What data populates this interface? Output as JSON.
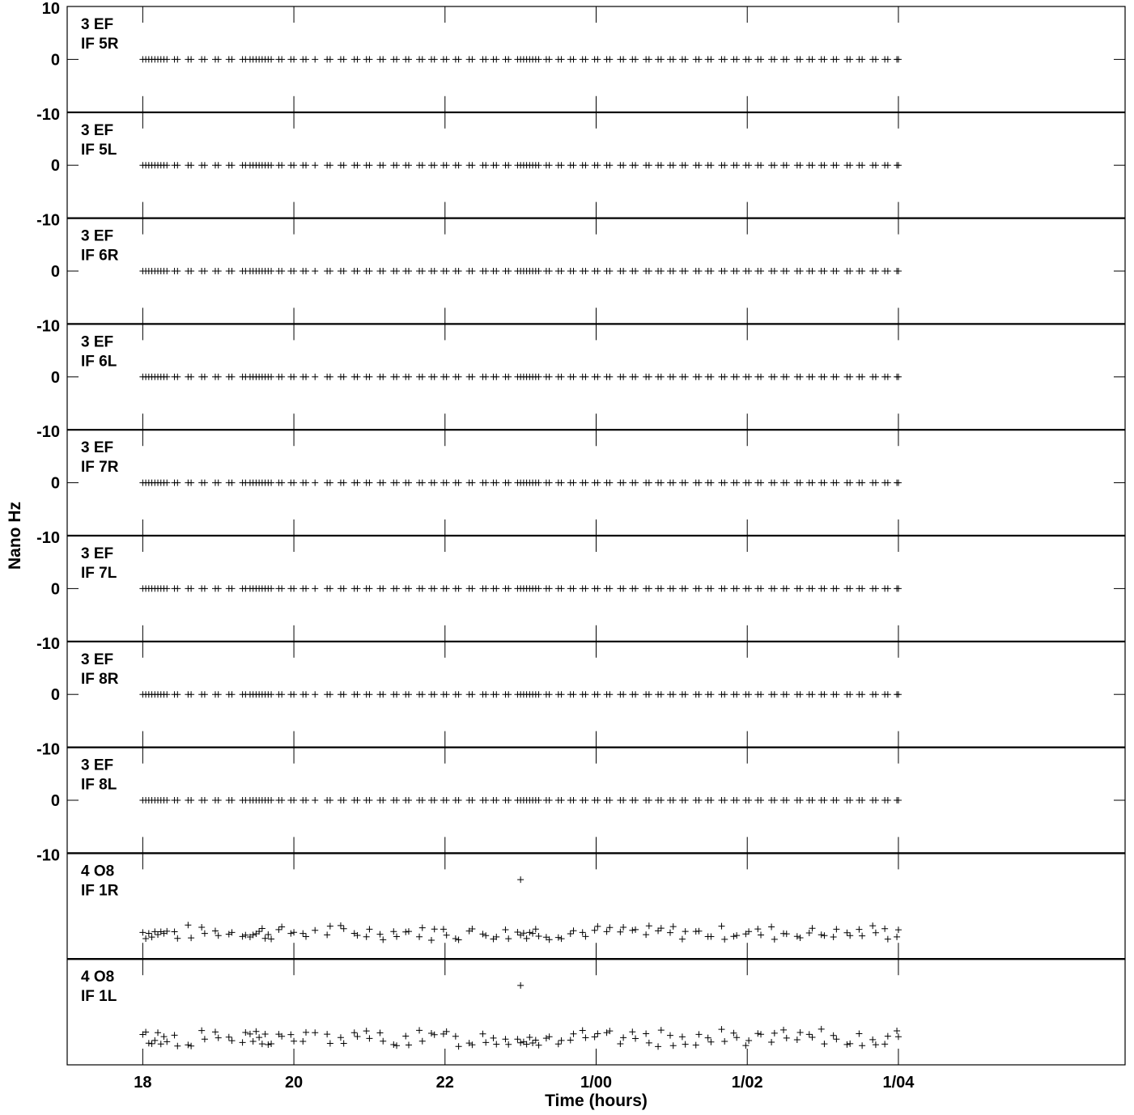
{
  "chart_data": {
    "type": "scatter",
    "xlabel": "Time (hours)",
    "ylabel": "Nano Hz",
    "x_tick_labels": [
      "18",
      "20",
      "22",
      "1/00",
      "1/02",
      "1/04"
    ],
    "x_tick_hours": [
      18,
      20,
      22,
      24,
      26,
      28
    ],
    "x_range_hours": [
      17,
      31
    ],
    "minor_tick_hours": [
      18,
      20,
      22,
      24,
      26,
      28
    ],
    "panels": [
      {
        "label_line1": "3 EF",
        "label_line2": "IF 5R",
        "y_tick_labels": [
          "10",
          "0",
          "-10"
        ],
        "ylim": [
          -10,
          10
        ],
        "level": 0
      },
      {
        "label_line1": "3 EF",
        "label_line2": "IF 5L",
        "y_tick_labels": [
          "0",
          "-10"
        ],
        "ylim": [
          -10,
          10
        ],
        "level": 0
      },
      {
        "label_line1": "3 EF",
        "label_line2": "IF 6R",
        "y_tick_labels": [
          "0",
          "-10"
        ],
        "ylim": [
          -10,
          10
        ],
        "level": 0
      },
      {
        "label_line1": "3 EF",
        "label_line2": "IF 6L",
        "y_tick_labels": [
          "0",
          "-10"
        ],
        "ylim": [
          -10,
          10
        ],
        "level": 0
      },
      {
        "label_line1": "3 EF",
        "label_line2": "IF 7R",
        "y_tick_labels": [
          "0",
          "-10"
        ],
        "ylim": [
          -10,
          10
        ],
        "level": 0
      },
      {
        "label_line1": "3 EF",
        "label_line2": "IF 7L",
        "y_tick_labels": [
          "0",
          "-10"
        ],
        "ylim": [
          -10,
          10
        ],
        "level": 0
      },
      {
        "label_line1": "3 EF",
        "label_line2": "IF 8R",
        "y_tick_labels": [
          "0",
          "-10"
        ],
        "ylim": [
          -10,
          10
        ],
        "level": 0
      },
      {
        "label_line1": "3 EF",
        "label_line2": "IF 8L",
        "y_tick_labels": [
          "0",
          "-10"
        ],
        "ylim": [
          -10,
          10
        ],
        "level": 0
      },
      {
        "label_line1": "4 O8",
        "label_line2": "IF 1R",
        "y_tick_labels": [],
        "ylim": [
          -10,
          10
        ],
        "level": -5,
        "scatter_amp": 1.3,
        "outlier": {
          "x": 23.0,
          "y": 5
        },
        "seed": 7
      },
      {
        "label_line1": "4 O8",
        "label_line2": "IF 1L",
        "y_tick_labels": [],
        "ylim": [
          -10,
          10
        ],
        "level": -5,
        "scatter_amp": 1.5,
        "outlier": {
          "x": 23.0,
          "y": 5
        },
        "seed": 13
      }
    ],
    "sample_times_hours": [
      18.0,
      18.04,
      18.08,
      18.12,
      18.16,
      18.2,
      18.24,
      18.28,
      18.32,
      18.42,
      18.46,
      18.6,
      18.64,
      18.78,
      18.82,
      18.96,
      19.0,
      19.14,
      19.18,
      19.32,
      19.36,
      19.42,
      19.46,
      19.5,
      19.54,
      19.58,
      19.62,
      19.66,
      19.7,
      19.8,
      19.84,
      19.96,
      20.0,
      20.12,
      20.16,
      20.28,
      20.44,
      20.48,
      20.62,
      20.66,
      20.8,
      20.84,
      20.96,
      21.0,
      21.14,
      21.18,
      21.32,
      21.36,
      21.48,
      21.52,
      21.66,
      21.7,
      21.82,
      21.86,
      21.98,
      22.02,
      22.14,
      22.18,
      22.32,
      22.36,
      22.5,
      22.54,
      22.64,
      22.68,
      22.8,
      22.84,
      22.96,
      23.0,
      23.04,
      23.08,
      23.12,
      23.16,
      23.2,
      23.24,
      23.34,
      23.38,
      23.5,
      23.54,
      23.66,
      23.7,
      23.82,
      23.86,
      23.98,
      24.02,
      24.14,
      24.18,
      24.32,
      24.36,
      24.48,
      24.52,
      24.66,
      24.7,
      24.82,
      24.86,
      24.98,
      25.02,
      25.14,
      25.18,
      25.32,
      25.36,
      25.48,
      25.52,
      25.66,
      25.7,
      25.82,
      25.86,
      25.98,
      26.02,
      26.14,
      26.18,
      26.32,
      26.36,
      26.48,
      26.52,
      26.66,
      26.7,
      26.82,
      26.86,
      26.98,
      27.02,
      27.14,
      27.18,
      27.32,
      27.36,
      27.48,
      27.52,
      27.66,
      27.7,
      27.82,
      27.86,
      27.98,
      28.0
    ],
    "grid": false,
    "legend": "none"
  }
}
